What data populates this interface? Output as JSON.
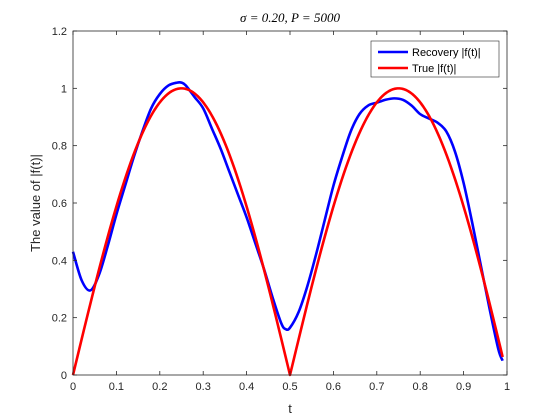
{
  "chart_data": {
    "type": "line",
    "title": "σ = 0.20,    P = 5000",
    "xlabel": "t",
    "ylabel": "The value of |f(t)|",
    "xlim": [
      0,
      1
    ],
    "ylim": [
      0,
      1.2
    ],
    "xticks": [
      "0",
      "0.1",
      "0.2",
      "0.3",
      "0.4",
      "0.5",
      "0.6",
      "0.7",
      "0.8",
      "0.9",
      "1"
    ],
    "yticks": [
      "0",
      "0.2",
      "0.4",
      "0.6",
      "0.8",
      "1",
      "1.2"
    ],
    "grid": false,
    "legend_position": "top-right",
    "series": [
      {
        "name": "Recovery |f(t)|",
        "color": "#0000ff",
        "x": [
          0.0,
          0.02,
          0.04,
          0.06,
          0.08,
          0.1,
          0.12,
          0.14,
          0.16,
          0.18,
          0.2,
          0.22,
          0.24,
          0.25,
          0.26,
          0.28,
          0.3,
          0.32,
          0.34,
          0.36,
          0.38,
          0.4,
          0.42,
          0.44,
          0.46,
          0.48,
          0.49,
          0.5,
          0.52,
          0.54,
          0.56,
          0.58,
          0.6,
          0.62,
          0.64,
          0.66,
          0.68,
          0.7,
          0.72,
          0.74,
          0.76,
          0.78,
          0.8,
          0.82,
          0.84,
          0.86,
          0.88,
          0.9,
          0.92,
          0.94,
          0.96,
          0.98,
          0.99
        ],
        "y": [
          0.43,
          0.33,
          0.295,
          0.35,
          0.45,
          0.56,
          0.66,
          0.76,
          0.85,
          0.93,
          0.98,
          1.01,
          1.02,
          1.02,
          1.01,
          0.97,
          0.93,
          0.86,
          0.79,
          0.71,
          0.63,
          0.55,
          0.46,
          0.37,
          0.27,
          0.18,
          0.16,
          0.165,
          0.22,
          0.31,
          0.42,
          0.54,
          0.66,
          0.76,
          0.85,
          0.91,
          0.94,
          0.95,
          0.96,
          0.965,
          0.96,
          0.94,
          0.91,
          0.895,
          0.88,
          0.85,
          0.78,
          0.67,
          0.53,
          0.38,
          0.23,
          0.09,
          0.05
        ]
      },
      {
        "name": "True |f(t)|",
        "color": "#ff0000",
        "function": "abs(sin(2*pi*t))",
        "x_range": [
          0.0,
          0.99
        ]
      }
    ]
  }
}
